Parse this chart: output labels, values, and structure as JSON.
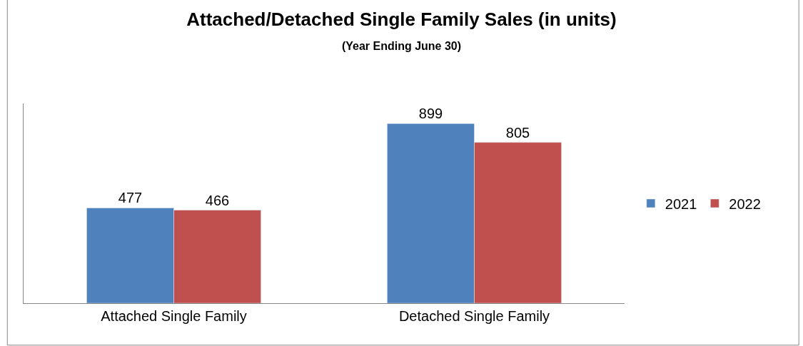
{
  "chart_data": {
    "type": "bar",
    "title": "Attached/Detached Single Family Sales (in units)",
    "subtitle": "(Year Ending June 30)",
    "categories": [
      "Attached Single Family",
      "Detached Single Family"
    ],
    "series": [
      {
        "name": "2021",
        "color": "#4f81bd",
        "values": [
          477,
          899
        ]
      },
      {
        "name": "2022",
        "color": "#c0504d",
        "values": [
          466,
          805
        ]
      }
    ],
    "ylim": [
      0,
      1000
    ],
    "data_labels": true,
    "legend": "right",
    "tick_labels": "x"
  }
}
